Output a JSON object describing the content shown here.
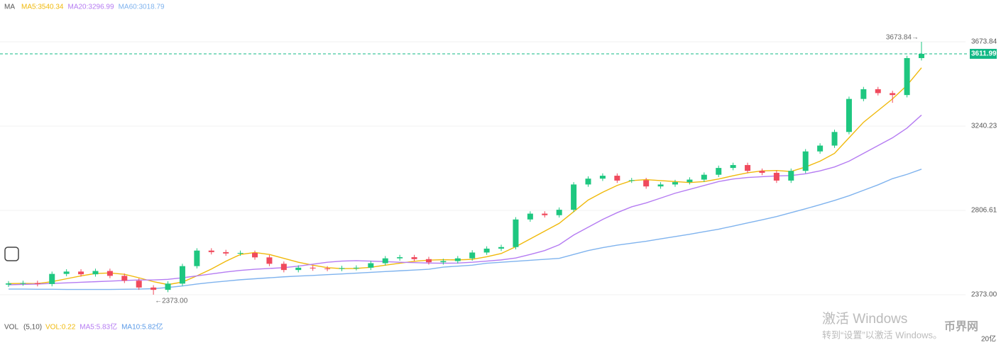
{
  "chart_data": {
    "type": "candlestick",
    "legend_title": "MA",
    "ylim": [
      2322,
      3816
    ],
    "yticks": [
      3673.84,
      3240.23,
      2806.61,
      {
        "value": 2373,
        "label": "2373.00"
      }
    ],
    "grid": true,
    "up_color": "#1ec780",
    "down_color": "#f04a5d",
    "current_price": 3611.99,
    "current_price_color": "#12b886",
    "annotations": [
      "3673.84→",
      "←2373.00"
    ],
    "open": [
      2425,
      2431,
      2433,
      2428,
      2480,
      2492,
      2478,
      2495,
      2470,
      2445,
      2410,
      2398,
      2430,
      2520,
      2600,
      2592,
      2585,
      2588,
      2565,
      2532,
      2500,
      2512,
      2508,
      2506,
      2510,
      2512,
      2535,
      2560,
      2566,
      2556,
      2540,
      2546,
      2560,
      2590,
      2610,
      2618,
      2760,
      2790,
      2782,
      2810,
      2940,
      2970,
      2985,
      2960,
      2962,
      2930,
      2940,
      2952,
      2965,
      2990,
      3025,
      3040,
      3010,
      3000,
      2960,
      3010,
      3110,
      3140,
      3210,
      3380,
      3430,
      3410,
      3400,
      3590
    ],
    "high": [
      2443,
      2445,
      2445,
      2492,
      2504,
      2504,
      2507,
      2507,
      2482,
      2457,
      2422,
      2442,
      2532,
      2612,
      2612,
      2604,
      2600,
      2600,
      2577,
      2544,
      2524,
      2524,
      2520,
      2522,
      2524,
      2547,
      2572,
      2578,
      2578,
      2568,
      2558,
      2572,
      2602,
      2622,
      2630,
      2772,
      2802,
      2802,
      2822,
      2952,
      2982,
      2997,
      2997,
      2974,
      2974,
      2952,
      2964,
      2977,
      3002,
      3037,
      3052,
      3052,
      3022,
      3012,
      3022,
      3122,
      3152,
      3222,
      3392,
      3442,
      3442,
      3422,
      3602,
      3673.84
    ],
    "low": [
      2413,
      2419,
      2416,
      2416,
      2468,
      2466,
      2466,
      2458,
      2433,
      2398,
      2373,
      2386,
      2418,
      2508,
      2580,
      2573,
      2573,
      2553,
      2520,
      2488,
      2488,
      2496,
      2494,
      2494,
      2498,
      2500,
      2523,
      2548,
      2544,
      2528,
      2528,
      2534,
      2548,
      2578,
      2598,
      2606,
      2748,
      2770,
      2770,
      2798,
      2928,
      2958,
      2948,
      2948,
      2918,
      2918,
      2928,
      2940,
      2953,
      2978,
      3013,
      2998,
      2988,
      2948,
      2948,
      2998,
      3098,
      3128,
      3198,
      3368,
      3398,
      3360,
      3388,
      3578
    ],
    "close": [
      2431,
      2433,
      2428,
      2480,
      2492,
      2478,
      2495,
      2470,
      2445,
      2410,
      2398,
      2430,
      2520,
      2600,
      2592,
      2585,
      2588,
      2565,
      2532,
      2500,
      2512,
      2508,
      2506,
      2510,
      2512,
      2535,
      2560,
      2566,
      2556,
      2540,
      2546,
      2560,
      2590,
      2610,
      2618,
      2760,
      2790,
      2782,
      2810,
      2940,
      2970,
      2985,
      2960,
      2962,
      2930,
      2940,
      2952,
      2965,
      2990,
      3025,
      3040,
      3010,
      3000,
      2960,
      3010,
      3110,
      3140,
      3210,
      3380,
      3430,
      3410,
      3400,
      3590,
      3611.99
    ],
    "series": [
      {
        "name": "MA5:3540.34",
        "color": "#f0b90b",
        "values": [
          2430,
          2431,
          2430,
          2440,
          2455,
          2470,
          2482,
          2485,
          2478,
          2460,
          2440,
          2425,
          2438,
          2470,
          2505,
          2545,
          2580,
          2590,
          2580,
          2560,
          2540,
          2525,
          2512,
          2507,
          2508,
          2514,
          2525,
          2535,
          2545,
          2551,
          2553,
          2552,
          2555,
          2568,
          2585,
          2620,
          2660,
          2700,
          2740,
          2800,
          2860,
          2900,
          2935,
          2960,
          2965,
          2960,
          2955,
          2950,
          2955,
          2968,
          2985,
          3000,
          3010,
          3012,
          3007,
          3030,
          3060,
          3100,
          3180,
          3260,
          3320,
          3380,
          3450,
          3540.34
        ]
      },
      {
        "name": "MA20:3296.99",
        "color": "#b57cf2",
        "values": [
          2424,
          2426,
          2428,
          2431,
          2434,
          2437,
          2440,
          2443,
          2446,
          2449,
          2449,
          2452,
          2460,
          2470,
          2480,
          2490,
          2498,
          2504,
          2508,
          2512,
          2520,
          2530,
          2540,
          2546,
          2548,
          2546,
          2543,
          2540,
          2538,
          2536,
          2535,
          2536,
          2540,
          2546,
          2552,
          2562,
          2580,
          2600,
          2630,
          2680,
          2720,
          2760,
          2795,
          2825,
          2845,
          2870,
          2895,
          2915,
          2935,
          2955,
          2968,
          2976,
          2980,
          2984,
          2986,
          2995,
          3010,
          3030,
          3060,
          3100,
          3140,
          3180,
          3230,
          3296.99
        ]
      },
      {
        "name": "MA60:3018.79",
        "color": "#7fb3ee",
        "values": [
          2402,
          2402,
          2401,
          2401,
          2400,
          2400,
          2400,
          2400,
          2401,
          2402,
          2404,
          2410,
          2418,
          2428,
          2436,
          2443,
          2450,
          2455,
          2460,
          2465,
          2469,
          2472,
          2476,
          2480,
          2484,
          2488,
          2492,
          2496,
          2500,
          2504,
          2515,
          2520,
          2525,
          2535,
          2540,
          2545,
          2550,
          2555,
          2560,
          2580,
          2600,
          2615,
          2628,
          2638,
          2648,
          2660,
          2672,
          2684,
          2697,
          2710,
          2726,
          2742,
          2758,
          2775,
          2795,
          2815,
          2836,
          2858,
          2882,
          2910,
          2938,
          2970,
          2992,
          3018.79
        ]
      }
    ]
  },
  "volume_panel": {
    "title": "VOL",
    "params": "(5,10)",
    "axis_label": "20亿",
    "items": [
      {
        "text": "VOL:0.22",
        "color": "#f0b90b"
      },
      {
        "text": "MA5:5.83亿",
        "color": "#b57cf2"
      },
      {
        "text": "MA10:5.82亿",
        "color": "#5b9be8"
      }
    ]
  },
  "overlay": {
    "activate_title": "激活 Windows",
    "activate_hint": "转到“设置”以激活 Windows。",
    "watermark": "币界网"
  }
}
